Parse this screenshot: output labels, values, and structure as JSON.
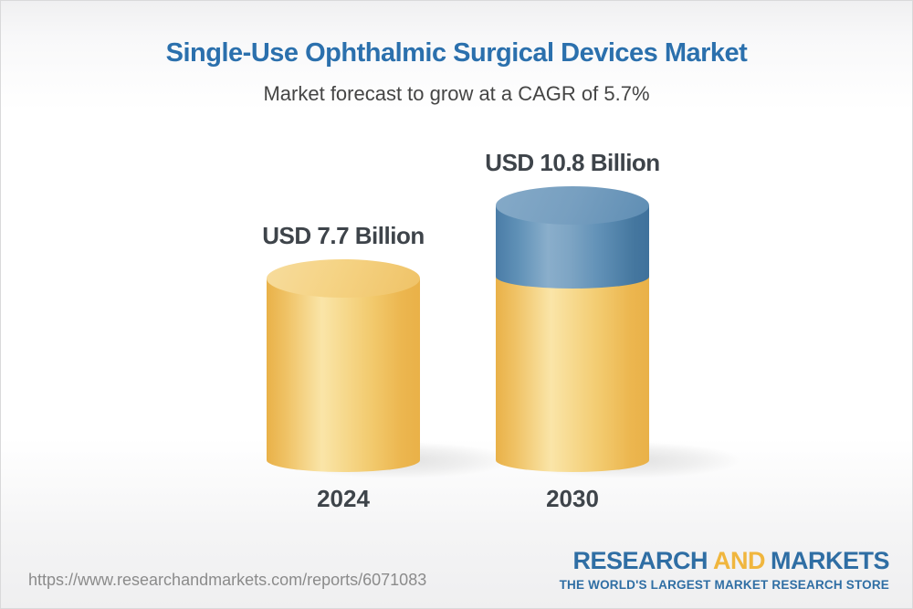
{
  "header": {
    "title": "Single-Use Ophthalmic Surgical Devices Market",
    "subtitle": "Market forecast to grow at a CAGR of 5.7%"
  },
  "chart_data": {
    "type": "bar",
    "variant": "3d-cylinder-column",
    "title": "Single-Use Ophthalmic Surgical Devices Market",
    "subtitle": "Market forecast to grow at a CAGR of 5.7%",
    "cagr_percent": 5.7,
    "unit": "USD Billion",
    "categories": [
      "2024",
      "2030"
    ],
    "values": [
      7.7,
      10.8
    ],
    "value_labels": [
      "USD 7.7 Billion",
      "USD 10.8 Billion"
    ],
    "growth_segment_billions": 3.1,
    "ylim": [
      0,
      11.5
    ],
    "grid": false,
    "legend": "none",
    "colors": {
      "base_gold": "#F3CD77",
      "growth_blue": "#5E8DB3",
      "label_text": "#3E444A"
    }
  },
  "footer": {
    "url": "https://www.researchandmarkets.com/reports/6071083",
    "logo": {
      "word_research": "RESEARCH",
      "word_and": "AND",
      "word_markets": "MARKETS",
      "tagline": "THE WORLD'S LARGEST MARKET RESEARCH STORE",
      "brand_blue": "#2F6EA4",
      "brand_gold": "#F0B63E"
    }
  },
  "theme": {
    "title_blue": "#2B70AD",
    "subtitle_gray": "#454545",
    "background_top": "#F0F0F1",
    "frame_border": "#D9D9DA"
  }
}
